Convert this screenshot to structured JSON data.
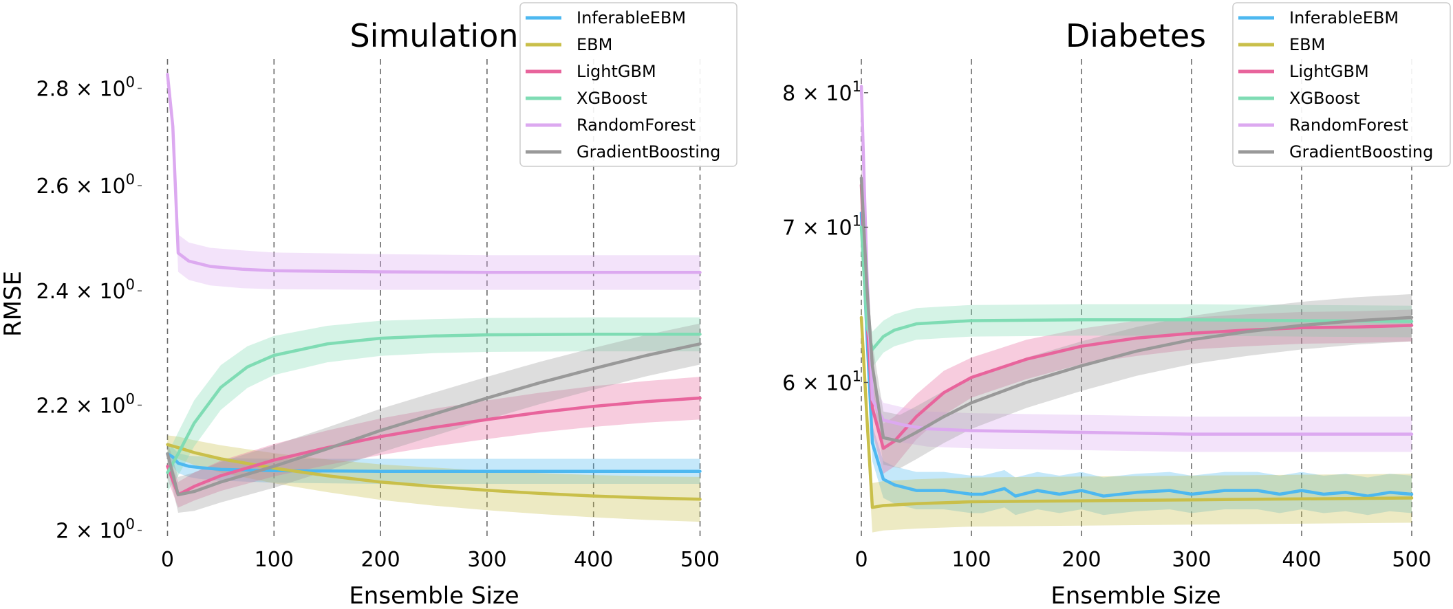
{
  "chart_data": [
    {
      "type": "line",
      "title": "Simulation",
      "xlabel": "Ensemble Size",
      "ylabel": "RMSE",
      "x_ticks": [
        0,
        100,
        200,
        300,
        400,
        500
      ],
      "x_tick_labels": [
        "0",
        "100",
        "200",
        "300",
        "400",
        "500"
      ],
      "xlim": [
        -10,
        510
      ],
      "y_scale": "log",
      "ylim": [
        1.985,
        2.86
      ],
      "y_ticks": [
        2.0,
        2.2,
        2.4,
        2.6,
        2.8
      ],
      "y_tick_labels": [
        {
          "mantissa": "2",
          "exponent": "0"
        },
        {
          "mantissa": "2.2",
          "exponent": "0"
        },
        {
          "mantissa": "2.4",
          "exponent": "0"
        },
        {
          "mantissa": "2.6",
          "exponent": "0"
        },
        {
          "mantissa": "2.8",
          "exponent": "0"
        }
      ],
      "grid": "vertical dashed",
      "legend_position": "top-right",
      "series": [
        {
          "name": "InferableEBM",
          "color": "#4db8f0",
          "points": [
            [
              0,
              2.12
            ],
            [
              5,
              2.115
            ],
            [
              10,
              2.105
            ],
            [
              20,
              2.1
            ],
            [
              30,
              2.098
            ],
            [
              50,
              2.095
            ],
            [
              100,
              2.093
            ],
            [
              200,
              2.092
            ],
            [
              300,
              2.092
            ],
            [
              400,
              2.092
            ],
            [
              500,
              2.092
            ]
          ],
          "band": [
            0.012,
            0.015,
            0.016,
            0.017,
            0.018,
            0.018,
            0.019,
            0.02,
            0.02,
            0.02,
            0.02
          ]
        },
        {
          "name": "EBM",
          "color": "#c9bf4a",
          "points": [
            [
              0,
              2.135
            ],
            [
              10,
              2.13
            ],
            [
              25,
              2.122
            ],
            [
              50,
              2.112
            ],
            [
              100,
              2.097
            ],
            [
              150,
              2.085
            ],
            [
              200,
              2.075
            ],
            [
              250,
              2.068
            ],
            [
              300,
              2.062
            ],
            [
              350,
              2.057
            ],
            [
              400,
              2.053
            ],
            [
              450,
              2.05
            ],
            [
              500,
              2.048
            ]
          ],
          "band": [
            0.015,
            0.018,
            0.02,
            0.022,
            0.024,
            0.026,
            0.028,
            0.03,
            0.031,
            0.032,
            0.033,
            0.034,
            0.035
          ]
        },
        {
          "name": "LightGBM",
          "color": "#e8649c",
          "points": [
            [
              0,
              2.1
            ],
            [
              10,
              2.055
            ],
            [
              25,
              2.068
            ],
            [
              50,
              2.085
            ],
            [
              100,
              2.11
            ],
            [
              150,
              2.13
            ],
            [
              200,
              2.148
            ],
            [
              250,
              2.163
            ],
            [
              300,
              2.176
            ],
            [
              350,
              2.188
            ],
            [
              400,
              2.198
            ],
            [
              450,
              2.206
            ],
            [
              500,
              2.212
            ]
          ],
          "band": [
            0.02,
            0.02,
            0.022,
            0.024,
            0.026,
            0.028,
            0.03,
            0.031,
            0.032,
            0.033,
            0.034,
            0.035,
            0.036
          ]
        },
        {
          "name": "XGBoost",
          "color": "#7fdcb4",
          "points": [
            [
              0,
              2.09
            ],
            [
              10,
              2.12
            ],
            [
              25,
              2.17
            ],
            [
              50,
              2.23
            ],
            [
              75,
              2.265
            ],
            [
              100,
              2.285
            ],
            [
              150,
              2.305
            ],
            [
              200,
              2.315
            ],
            [
              250,
              2.319
            ],
            [
              300,
              2.321
            ],
            [
              400,
              2.322
            ],
            [
              500,
              2.322
            ]
          ],
          "band": [
            0.03,
            0.035,
            0.038,
            0.038,
            0.036,
            0.034,
            0.032,
            0.031,
            0.03,
            0.03,
            0.03,
            0.03
          ]
        },
        {
          "name": "RandomForest",
          "color": "#dca9f0",
          "points": [
            [
              0,
              2.83
            ],
            [
              5,
              2.72
            ],
            [
              10,
              2.47
            ],
            [
              20,
              2.455
            ],
            [
              40,
              2.445
            ],
            [
              70,
              2.44
            ],
            [
              100,
              2.437
            ],
            [
              200,
              2.435
            ],
            [
              300,
              2.434
            ],
            [
              400,
              2.434
            ],
            [
              500,
              2.434
            ]
          ],
          "band": [
            0.01,
            0.02,
            0.035,
            0.035,
            0.035,
            0.035,
            0.034,
            0.033,
            0.032,
            0.032,
            0.032
          ]
        },
        {
          "name": "GradientBoosting",
          "color": "#999999",
          "points": [
            [
              0,
              2.12
            ],
            [
              10,
              2.055
            ],
            [
              25,
              2.06
            ],
            [
              50,
              2.075
            ],
            [
              100,
              2.1
            ],
            [
              150,
              2.128
            ],
            [
              200,
              2.158
            ],
            [
              250,
              2.185
            ],
            [
              300,
              2.212
            ],
            [
              350,
              2.238
            ],
            [
              400,
              2.262
            ],
            [
              450,
              2.285
            ],
            [
              500,
              2.305
            ]
          ],
          "band": [
            0.02,
            0.028,
            0.03,
            0.032,
            0.034,
            0.035,
            0.036,
            0.036,
            0.036,
            0.036,
            0.036,
            0.036,
            0.036
          ]
        }
      ]
    },
    {
      "type": "line",
      "title": "Diabetes",
      "xlabel": "Ensemble Size",
      "ylabel": "",
      "x_ticks": [
        0,
        100,
        200,
        300,
        400,
        500
      ],
      "x_tick_labels": [
        "0",
        "100",
        "200",
        "300",
        "400",
        "500"
      ],
      "xlim": [
        -10,
        510
      ],
      "y_scale": "log",
      "ylim": [
        51.3,
        82.6
      ],
      "y_ticks": [
        60,
        70,
        80
      ],
      "y_tick_labels": [
        {
          "mantissa": "6",
          "exponent": "1"
        },
        {
          "mantissa": "7",
          "exponent": "1"
        },
        {
          "mantissa": "8",
          "exponent": "1"
        }
      ],
      "grid": "vertical dashed",
      "legend_position": "top-right",
      "series": [
        {
          "name": "InferableEBM",
          "color": "#4db8f0",
          "points": [
            [
              0,
              71.0
            ],
            [
              5,
              63.0
            ],
            [
              10,
              56.5
            ],
            [
              20,
              54.5
            ],
            [
              30,
              54.2
            ],
            [
              50,
              53.9
            ],
            [
              75,
              53.9
            ],
            [
              100,
              53.7
            ],
            [
              110,
              53.7
            ],
            [
              130,
              54.0
            ],
            [
              140,
              53.6
            ],
            [
              160,
              53.9
            ],
            [
              180,
              53.7
            ],
            [
              200,
              53.9
            ],
            [
              220,
              53.6
            ],
            [
              250,
              53.8
            ],
            [
              280,
              53.9
            ],
            [
              300,
              53.7
            ],
            [
              330,
              53.9
            ],
            [
              360,
              53.9
            ],
            [
              380,
              53.7
            ],
            [
              400,
              53.9
            ],
            [
              420,
              53.7
            ],
            [
              440,
              53.8
            ],
            [
              460,
              53.6
            ],
            [
              480,
              53.8
            ],
            [
              500,
              53.7
            ]
          ],
          "band": [
            1.0,
            1.0,
            1.0,
            1.0,
            1.0,
            1.0,
            1.0,
            1.0,
            1.0,
            1.0,
            1.0,
            1.0,
            1.0,
            1.0,
            1.0,
            1.0,
            1.0,
            1.0,
            1.0,
            1.0,
            1.0,
            1.0,
            1.0,
            1.0,
            1.0,
            1.0,
            1.0
          ]
        },
        {
          "name": "EBM",
          "color": "#c9bf4a",
          "points": [
            [
              0,
              64.0
            ],
            [
              5,
              58.0
            ],
            [
              10,
              53.0
            ],
            [
              20,
              53.1
            ],
            [
              50,
              53.2
            ],
            [
              100,
              53.3
            ],
            [
              200,
              53.35
            ],
            [
              300,
              53.4
            ],
            [
              400,
              53.45
            ],
            [
              500,
              53.5
            ]
          ],
          "band": [
            1.0,
            1.3,
            1.3,
            1.3,
            1.3,
            1.3,
            1.3,
            1.3,
            1.3,
            1.3
          ]
        },
        {
          "name": "LightGBM",
          "color": "#e8649c",
          "points": [
            [
              0,
              73.0
            ],
            [
              5,
              64.0
            ],
            [
              10,
              58.5
            ],
            [
              20,
              56.2
            ],
            [
              30,
              56.6
            ],
            [
              50,
              58.0
            ],
            [
              75,
              59.4
            ],
            [
              100,
              60.3
            ],
            [
              150,
              61.4
            ],
            [
              200,
              62.2
            ],
            [
              250,
              62.7
            ],
            [
              300,
              63.0
            ],
            [
              350,
              63.2
            ],
            [
              400,
              63.35
            ],
            [
              450,
              63.4
            ],
            [
              500,
              63.5
            ]
          ],
          "band": [
            1.2,
            1.3,
            1.4,
            1.4,
            1.4,
            1.3,
            1.3,
            1.2,
            1.2,
            1.1,
            1.1,
            1.0,
            1.0,
            1.0,
            1.0,
            1.0
          ]
        },
        {
          "name": "XGBoost",
          "color": "#7fdcb4",
          "points": [
            [
              0,
              70.0
            ],
            [
              5,
              63.5
            ],
            [
              10,
              62.0
            ],
            [
              20,
              62.8
            ],
            [
              30,
              63.2
            ],
            [
              50,
              63.6
            ],
            [
              75,
              63.7
            ],
            [
              100,
              63.8
            ],
            [
              200,
              63.85
            ],
            [
              300,
              63.85
            ],
            [
              400,
              63.8
            ],
            [
              500,
              63.75
            ]
          ],
          "band": [
            1.2,
            1.2,
            1.1,
            1.0,
            1.0,
            1.0,
            1.0,
            1.0,
            1.0,
            1.0,
            1.0,
            1.0
          ]
        },
        {
          "name": "RandomForest",
          "color": "#dca9f0",
          "points": [
            [
              0,
              80.5
            ],
            [
              5,
              67.0
            ],
            [
              10,
              59.0
            ],
            [
              20,
              57.8
            ],
            [
              40,
              57.5
            ],
            [
              60,
              57.3
            ],
            [
              100,
              57.2
            ],
            [
              200,
              57.1
            ],
            [
              300,
              57.0
            ],
            [
              400,
              57.0
            ],
            [
              500,
              57.0
            ]
          ],
          "band": [
            1.0,
            1.0,
            1.0,
            1.0,
            1.0,
            1.0,
            1.0,
            1.0,
            1.0,
            1.0,
            1.0
          ]
        },
        {
          "name": "GradientBoosting",
          "color": "#999999",
          "points": [
            [
              0,
              73.5
            ],
            [
              5,
              66.0
            ],
            [
              10,
              61.0
            ],
            [
              20,
              56.8
            ],
            [
              35,
              56.6
            ],
            [
              50,
              57.1
            ],
            [
              75,
              58.0
            ],
            [
              100,
              58.8
            ],
            [
              150,
              60.0
            ],
            [
              200,
              61.0
            ],
            [
              250,
              61.9
            ],
            [
              300,
              62.6
            ],
            [
              350,
              63.1
            ],
            [
              400,
              63.5
            ],
            [
              450,
              63.8
            ],
            [
              500,
              64.0
            ]
          ],
          "band": [
            1.2,
            1.3,
            1.4,
            1.5,
            1.5,
            1.5,
            1.5,
            1.5,
            1.5,
            1.5,
            1.5,
            1.5,
            1.5,
            1.5,
            1.5,
            1.5
          ]
        }
      ]
    }
  ]
}
